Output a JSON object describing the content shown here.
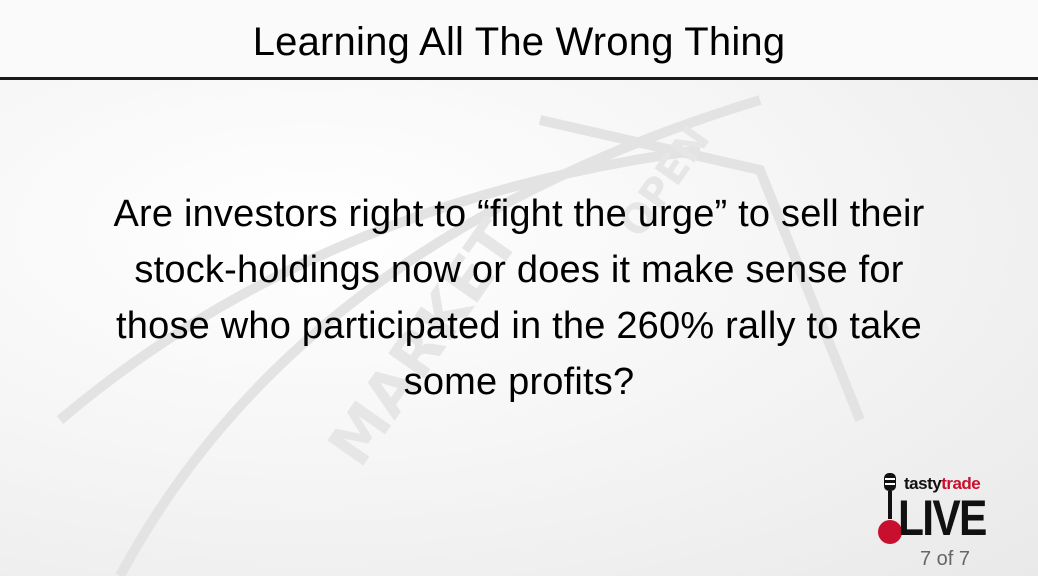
{
  "slide": {
    "title": "Learning All The Wrong Thing",
    "body_lines": [
      "Are investors right to “fight the urge” to sell their",
      "stock-holdings now or does it make sense for",
      "those who participated in the 260% rally to take",
      "some profits?"
    ],
    "page_number": "7 of 7"
  },
  "logo": {
    "brand_part1": "tasty",
    "brand_part2": "trade",
    "live": "LIVE"
  },
  "colors": {
    "title_rule": "#1a1a1a",
    "brand_red": "#c8102e",
    "page_number": "#666666"
  }
}
